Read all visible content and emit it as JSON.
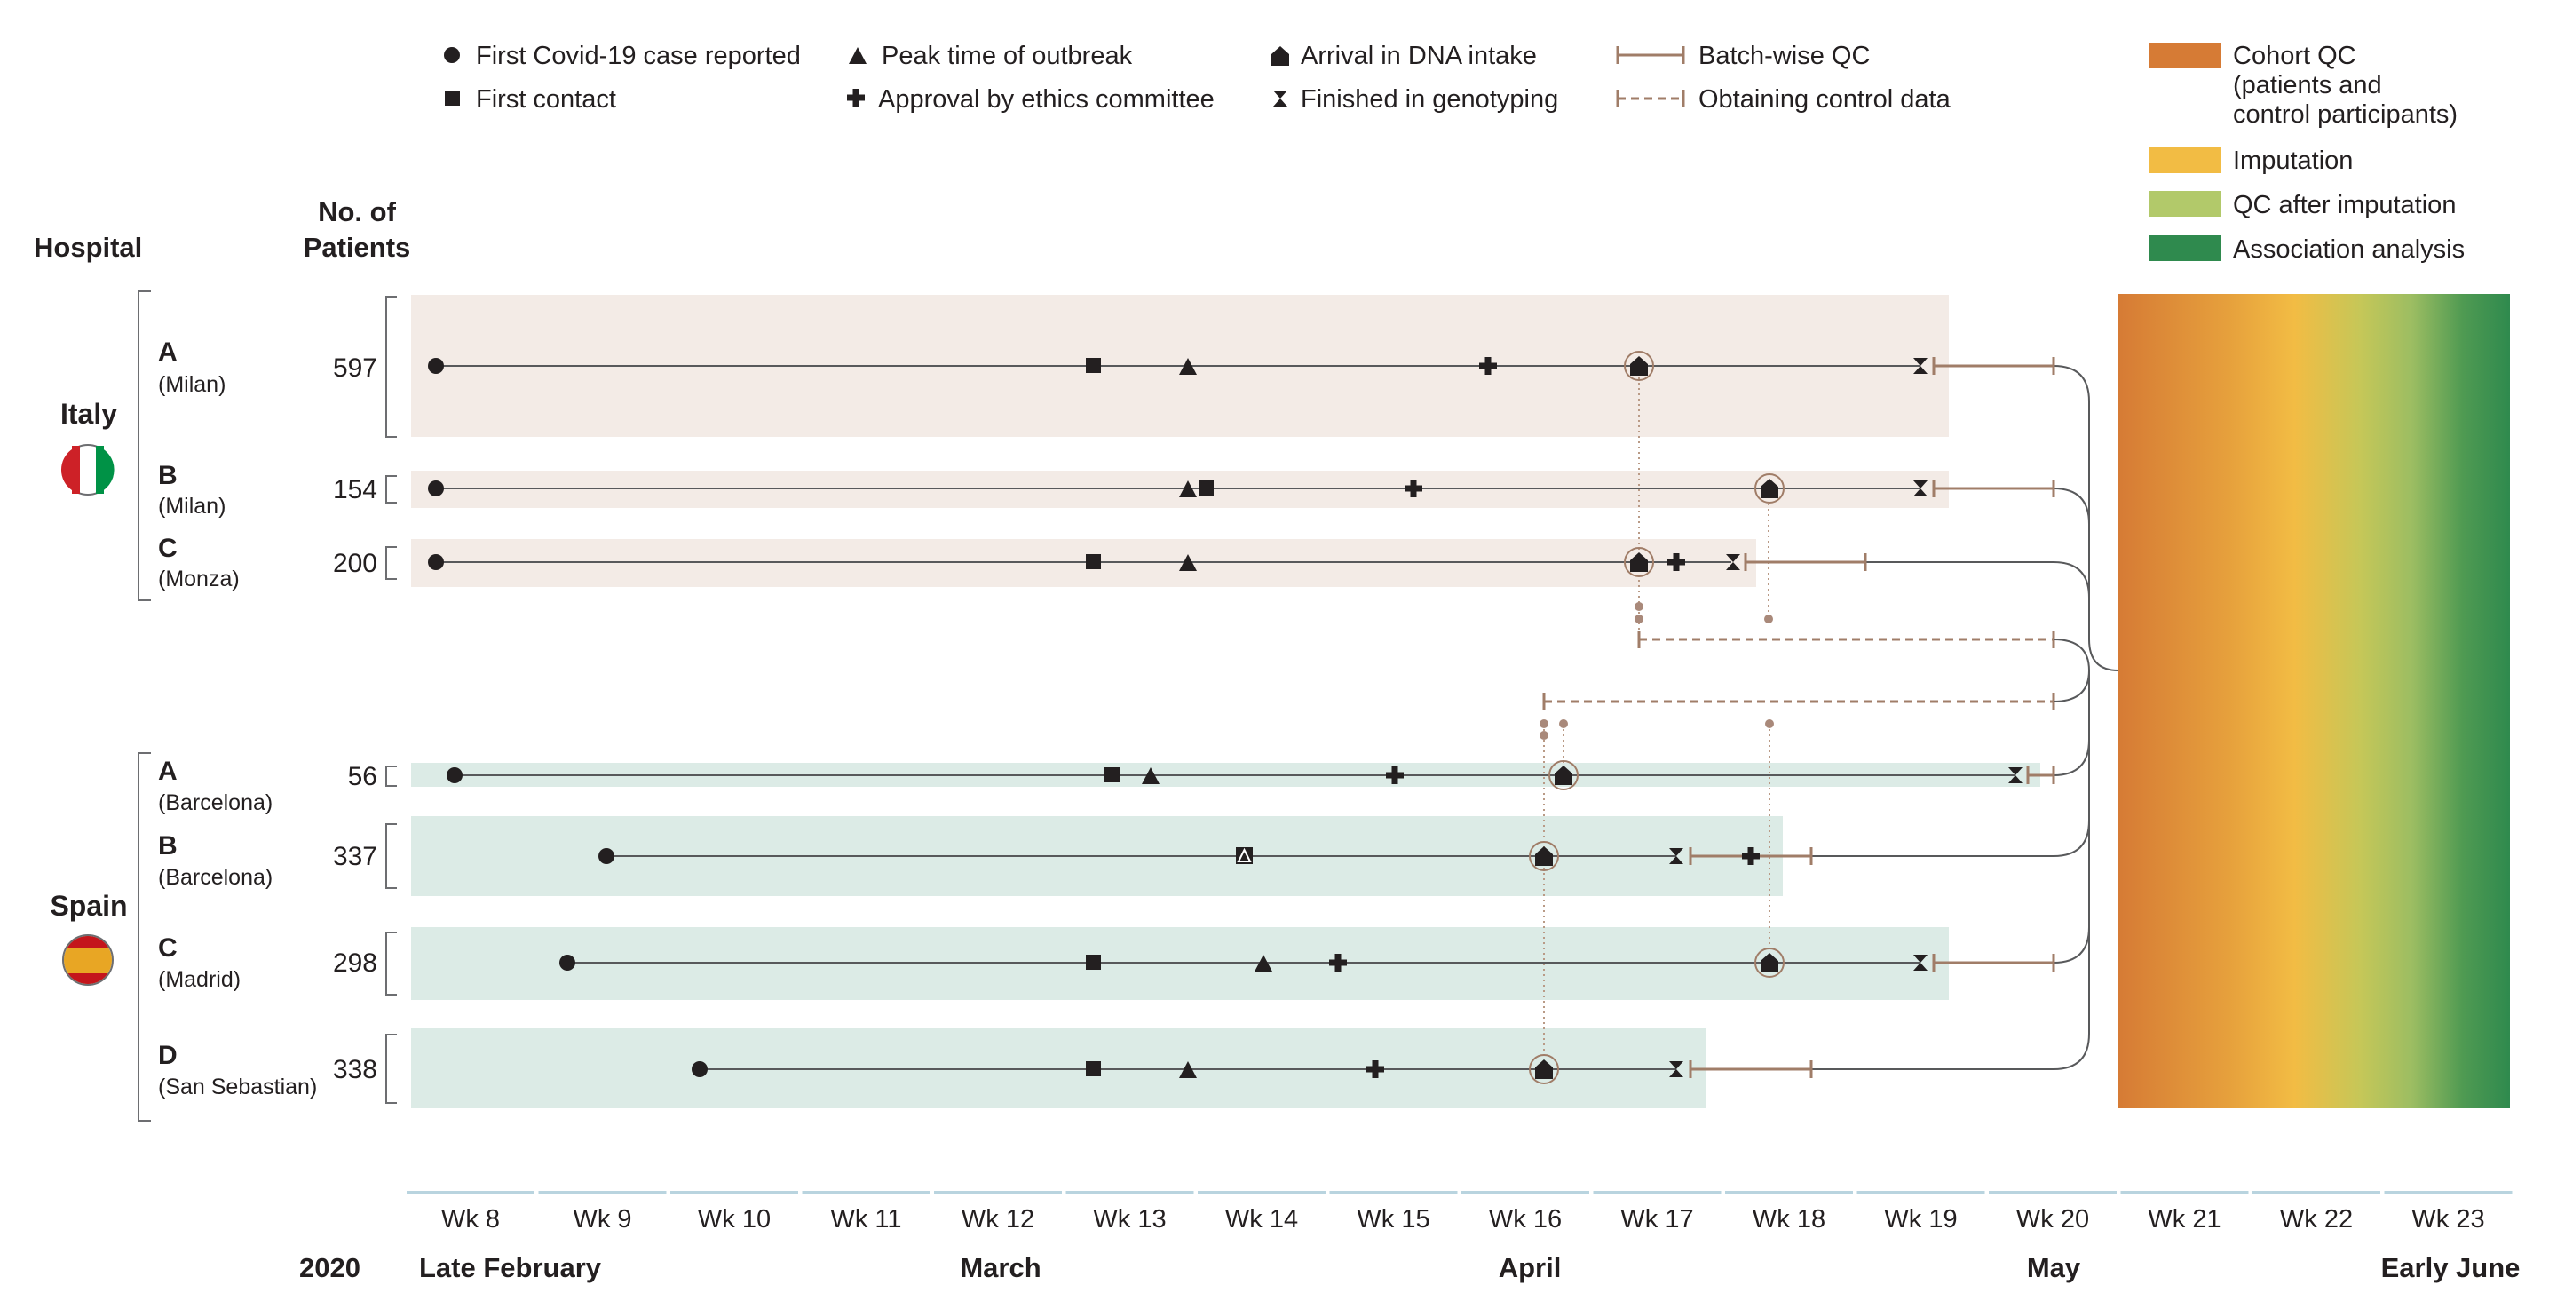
{
  "header": {
    "hospital": "Hospital",
    "patients_line1": "No. of",
    "patients_line2": "Patients"
  },
  "legend": {
    "first_case": "First Covid-19 case reported",
    "first_contact": "First contact",
    "peak": "Peak time of outbreak",
    "approval": "Approval by ethics committee",
    "arrival": "Arrival in DNA intake",
    "genotyping": "Finished in genotyping",
    "batch_qc": "Batch-wise QC",
    "control_data": "Obtaining control data",
    "cohort_qc_1": "Cohort QC",
    "cohort_qc_2": "(patients and",
    "cohort_qc_3": "control participants)",
    "imputation": "Imputation",
    "qc_after": "QC after imputation",
    "association": "Association analysis"
  },
  "colors": {
    "italy_band": "#f3ebe6",
    "spain_band": "#dcebe6",
    "qc_line": "#a07d68",
    "cohort_qc": "#d67b35",
    "imputation": "#f2bc44",
    "qc_after_imputation": "#b2c96a",
    "association": "#2f8a4e"
  },
  "countries": {
    "italy": "Italy",
    "spain": "Spain"
  },
  "hospitals": [
    {
      "site": "A",
      "city": "(Milan)",
      "patients": "597"
    },
    {
      "site": "B",
      "city": "(Milan)",
      "patients": "154"
    },
    {
      "site": "C",
      "city": "(Monza)",
      "patients": "200"
    },
    {
      "site": "A",
      "city": "(Barcelona)",
      "patients": "56"
    },
    {
      "site": "B",
      "city": "(Barcelona)",
      "patients": "337"
    },
    {
      "site": "C",
      "city": "(Madrid)",
      "patients": "298"
    },
    {
      "site": "D",
      "city": "(San Sebastian)",
      "patients": "338"
    }
  ],
  "weeks": [
    "Wk 8",
    "Wk 9",
    "Wk 10",
    "Wk 11",
    "Wk 12",
    "Wk 13",
    "Wk 14",
    "Wk 15",
    "Wk 16",
    "Wk 17",
    "Wk 18",
    "Wk 19",
    "Wk 20",
    "Wk 21",
    "Wk 22",
    "Wk 23"
  ],
  "footer": {
    "year": "2020",
    "months": [
      "Late February",
      "March",
      "April",
      "May",
      "Early June"
    ]
  }
}
